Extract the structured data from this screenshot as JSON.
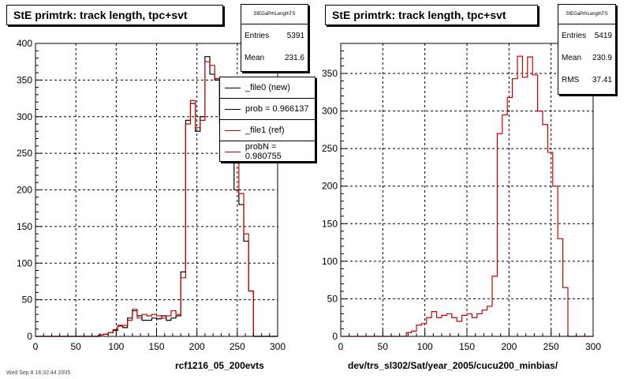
{
  "colors": {
    "new": "#000000",
    "ref": "#cc0000",
    "frame": "#000000",
    "grid": "#000000"
  },
  "left": {
    "title": "StE primtrk: track length, tpc+svt",
    "stats": {
      "header": "StEGaPrhLengthTS",
      "rows": [
        {
          "label": "Entries",
          "value": "5391"
        },
        {
          "label": "Mean",
          "value": "231.6"
        }
      ]
    },
    "xlabel": "rcf1216_05_200evts",
    "legend": [
      {
        "label": "_file0 (new)",
        "color": "#000000"
      },
      {
        "label": "prob = 0.966137",
        "color": "#000000"
      },
      {
        "label": "_file1 (ref)",
        "color": "#cc0000"
      },
      {
        "label": "probN = 0.980755",
        "color": "#cc0000"
      }
    ]
  },
  "right": {
    "title": "StE primtrk: track length, tpc+svt",
    "stats": {
      "header": "StEGaPrhLengthTS",
      "rows": [
        {
          "label": "Entries",
          "value": "5419"
        },
        {
          "label": "Mean",
          "value": "230.9"
        },
        {
          "label": "RMS",
          "value": "37.41"
        }
      ]
    },
    "xlabel": "dev/trs_sl302/Sat/year_2005/cucu200_minbias/"
  },
  "footer": "Wed Sep 8 16:32:44 2005",
  "chart_data": [
    {
      "type": "bar",
      "title": "StE primtrk: track length, tpc+svt",
      "xlabel": "rcf1216_05_200evts",
      "xlim": [
        0,
        300
      ],
      "ylim": [
        0,
        400
      ],
      "xticks": [
        0,
        50,
        100,
        150,
        200,
        250,
        300
      ],
      "yticks": [
        0,
        50,
        100,
        150,
        200,
        250,
        300,
        350,
        400
      ],
      "grid": true,
      "bin_edges_start": 0,
      "bin_width": 6,
      "series": [
        {
          "name": "_file0 (new)",
          "color": "#000000",
          "values": [
            0,
            0,
            0,
            0,
            0,
            0,
            0,
            0,
            0,
            0,
            0,
            0,
            0,
            2,
            3,
            5,
            8,
            15,
            12,
            25,
            35,
            28,
            22,
            22,
            25,
            24,
            28,
            22,
            25,
            28,
            88,
            295,
            318,
            280,
            300,
            382,
            358,
            350,
            300,
            290,
            270,
            200,
            180,
            130,
            62,
            0
          ]
        },
        {
          "name": "_file1 (ref)",
          "color": "#cc0000",
          "values": [
            0,
            0,
            0,
            0,
            0,
            0,
            0,
            0,
            0,
            0,
            0,
            0,
            0,
            2,
            3,
            5,
            9,
            14,
            15,
            22,
            37,
            25,
            30,
            28,
            30,
            28,
            25,
            28,
            35,
            30,
            80,
            290,
            322,
            285,
            295,
            375,
            370,
            352,
            290,
            295,
            280,
            245,
            195,
            140,
            62,
            0
          ]
        }
      ]
    },
    {
      "type": "bar",
      "title": "StE primtrk: track length, tpc+svt",
      "xlabel": "dev/trs_sl302/Sat/year_2005/cucu200_minbias/",
      "xlim": [
        0,
        300
      ],
      "ylim": [
        0,
        390
      ],
      "xticks": [
        0,
        50,
        100,
        150,
        200,
        250,
        300
      ],
      "yticks": [
        0,
        50,
        100,
        150,
        200,
        250,
        300,
        350
      ],
      "grid": true,
      "bin_edges_start": 0,
      "bin_width": 6,
      "series": [
        {
          "name": "cucu200_minbias",
          "color": "#cc0000",
          "values": [
            0,
            0,
            0,
            0,
            0,
            0,
            0,
            0,
            0,
            0,
            0,
            0,
            0,
            5,
            7,
            15,
            17,
            25,
            33,
            25,
            28,
            30,
            25,
            20,
            28,
            30,
            25,
            30,
            35,
            40,
            80,
            270,
            295,
            318,
            343,
            373,
            345,
            372,
            348,
            300,
            282,
            245,
            200,
            130,
            65,
            0
          ]
        }
      ]
    }
  ]
}
